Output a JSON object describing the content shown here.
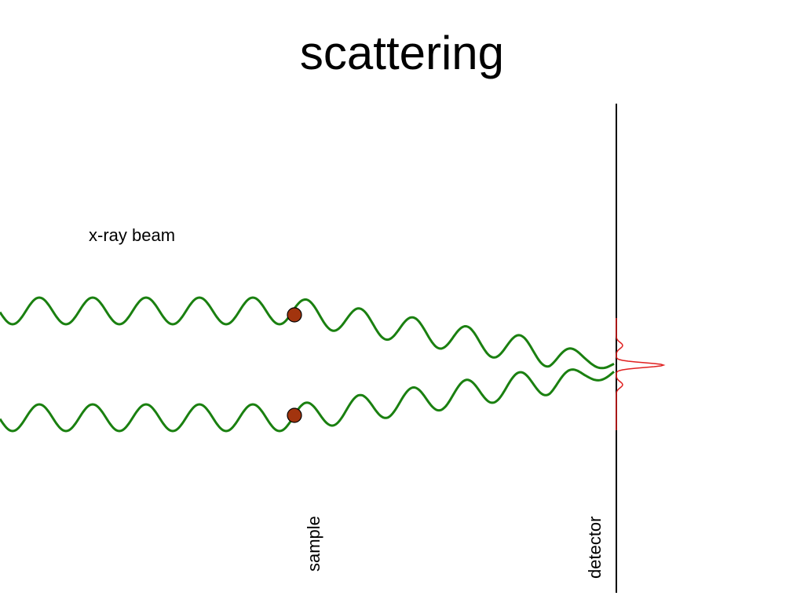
{
  "title": "scattering",
  "labels": {
    "beam": "x-ray beam",
    "sample": "sample",
    "detector": "detector"
  }
}
